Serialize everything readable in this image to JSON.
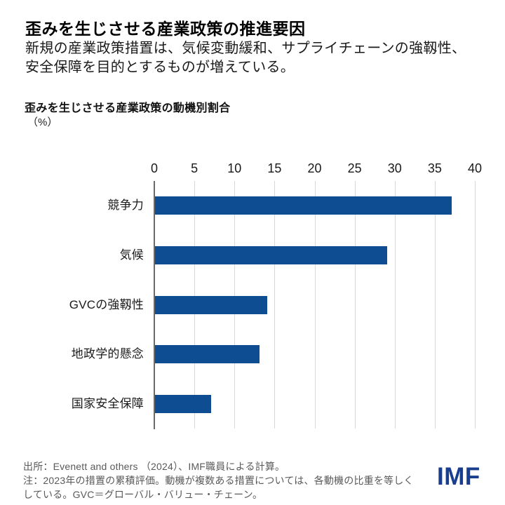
{
  "header": {
    "title": "歪みを生じさせる産業政策の推進要因",
    "subtitle_lines": [
      "新規の産業政策措置は、気候変動緩和、サプライチェーンの強靱性、",
      "安全保障を目的とするものが増えている。"
    ]
  },
  "chart_data": {
    "type": "bar",
    "orientation": "horizontal",
    "title": "歪みを生じさせる産業政策の動機別割合",
    "unit_label": "（%）",
    "ylabel": "",
    "xlabel": "%",
    "categories": [
      "競争力",
      "気候",
      "GVCの強靱性",
      "地政学的懸念",
      "国家安全保障"
    ],
    "values": [
      37,
      29,
      14,
      13,
      7
    ],
    "xlim": [
      0,
      40
    ],
    "xticks": [
      0,
      5,
      10,
      15,
      20,
      25,
      30,
      35,
      40
    ],
    "grid": true,
    "legend": false,
    "bar_color": "#0f4d92"
  },
  "footer": {
    "source": "出所：Evenett and others （2024）、IMF職員による計算。",
    "note_lines": [
      "注：2023年の措置の累積評価。動機が複数ある措置については、各動機の比重を等しく",
      "している。GVC＝グローバル・バリュー・チェーン。"
    ],
    "logo": "IMF"
  },
  "colors": {
    "bar": "#0f4d92",
    "imf_logo": "#1a3e8f",
    "gridline": "#d8d8d8",
    "axis": "#6b6b6b",
    "title_text": "#000000",
    "note_text": "#595959"
  }
}
